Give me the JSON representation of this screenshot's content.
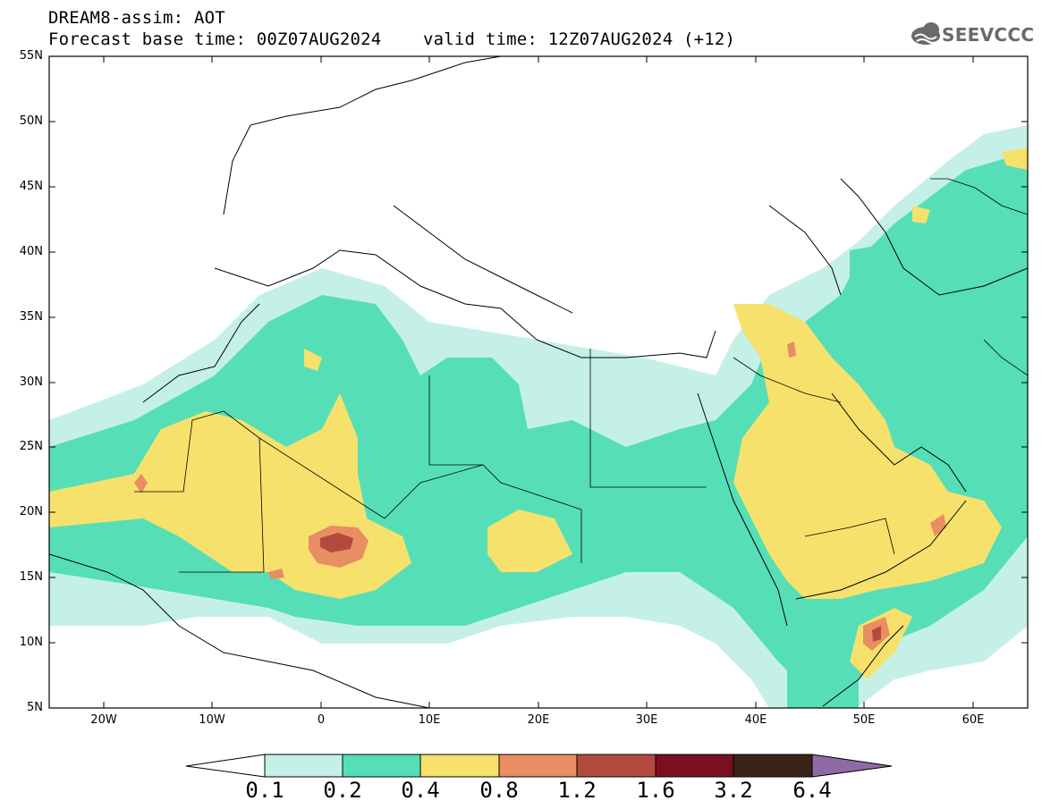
{
  "header": {
    "title_line1": "DREAM8-assim: AOT",
    "title_line2": "Forecast base time: 00Z07AUG2024    valid time: 12Z07AUG2024 (+12)",
    "logo_text": "SEEVCCC"
  },
  "map": {
    "lat_labels": [
      "55N",
      "50N",
      "45N",
      "40N",
      "35N",
      "30N",
      "25N",
      "20N",
      "15N",
      "10N",
      "5N"
    ],
    "lon_labels": [
      "20W",
      "10W",
      "0",
      "10E",
      "20E",
      "30E",
      "40E",
      "50E",
      "60E"
    ]
  },
  "colorbar": {
    "labels": [
      "0.1",
      "0.2",
      "0.4",
      "0.8",
      "1.2",
      "1.6",
      "3.2",
      "6.4"
    ],
    "colors": [
      "#ffffff",
      "#c5f0e8",
      "#56dfb6",
      "#f6e16d",
      "#e98d62",
      "#b24a3e",
      "#7a0f22",
      "#3a2418",
      "#8e6aa6"
    ]
  }
}
